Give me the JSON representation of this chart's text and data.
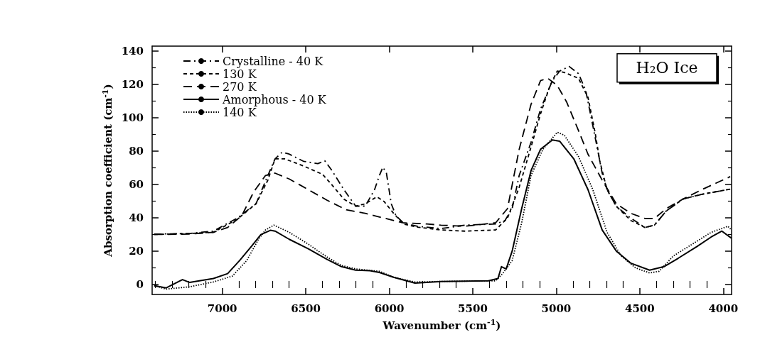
{
  "chart_data": {
    "type": "line",
    "xlabel": "Wavenumber (cm$^{-1}$)",
    "ylabel": "Absorption coefficient (cm$^{-1}$)",
    "annotations": [
      "H₂O Ice"
    ],
    "xlim": [
      7420,
      3950
    ],
    "ylim": [
      -6,
      143
    ],
    "xticks": [
      {
        "value": 7400,
        "label": null
      },
      {
        "value": 7300,
        "label": null
      },
      {
        "value": 7200,
        "label": null
      },
      {
        "value": 7100,
        "label": null
      },
      7000,
      {
        "value": 6900,
        "label": null
      },
      {
        "value": 6800,
        "label": null
      },
      {
        "value": 6700,
        "label": null
      },
      {
        "value": 6600,
        "label": null
      },
      6500,
      {
        "value": 6400,
        "label": null
      },
      {
        "value": 6300,
        "label": null
      },
      {
        "value": 6200,
        "label": null
      },
      {
        "value": 6100,
        "label": null
      },
      6000,
      {
        "value": 5900,
        "label": null
      },
      {
        "value": 5800,
        "label": null
      },
      {
        "value": 5700,
        "label": null
      },
      {
        "value": 5600,
        "label": null
      },
      5500,
      {
        "value": 5400,
        "label": null
      },
      {
        "value": 5300,
        "label": null
      },
      {
        "value": 5200,
        "label": null
      },
      {
        "value": 5100,
        "label": null
      },
      5000,
      {
        "value": 4900,
        "label": null
      },
      {
        "value": 4800,
        "label": null
      },
      {
        "value": 4700,
        "label": null
      },
      {
        "value": 4600,
        "label": null
      },
      4500,
      {
        "value": 4400,
        "label": null
      },
      {
        "value": 4300,
        "label": null
      },
      {
        "value": 4200,
        "label": null
      },
      {
        "value": 4100,
        "label": null
      },
      4000
    ],
    "yticks": [
      0,
      {
        "value": 10,
        "label": null
      },
      20,
      {
        "value": 30,
        "label": null
      },
      40,
      {
        "value": 50,
        "label": null
      },
      60,
      {
        "value": 70,
        "label": null
      },
      80,
      {
        "value": 90,
        "label": null
      },
      100,
      {
        "value": 110,
        "label": null
      },
      120,
      {
        "value": 130,
        "label": null
      },
      140
    ],
    "grid": false,
    "legend": "top left",
    "marker": "none",
    "series": [
      {
        "name": "Crystalline - 40 K",
        "color": "#000000",
        "line_style": "dashdot",
        "x": [
          7408,
          7195,
          7053,
          6911,
          6798,
          6727,
          6684,
          6641,
          6599,
          6514,
          6428,
          6386,
          6343,
          6272,
          6201,
          6144,
          6088,
          6059,
          6038,
          6017,
          5988,
          5960,
          5917,
          5832,
          5690,
          5548,
          5363,
          5307,
          5264,
          5222,
          5151,
          5094,
          5023,
          4980,
          4923,
          4867,
          4824,
          4781,
          4753,
          4725,
          4696,
          4640,
          4554,
          4469,
          4412,
          4341,
          4242,
          4128,
          3958
        ],
        "values": [
          30.2,
          30.6,
          32.0,
          39.8,
          48.4,
          65.4,
          75.4,
          79.4,
          78.2,
          73.9,
          72.5,
          74.2,
          68.3,
          56.9,
          47.0,
          47.0,
          56.9,
          65.4,
          70.4,
          66.8,
          48.4,
          41.3,
          37.0,
          34.9,
          33.5,
          35.6,
          36.3,
          38.4,
          45.5,
          65.4,
          85.3,
          105.2,
          122.3,
          128.0,
          130.8,
          126.5,
          116.6,
          95.3,
          81.1,
          66.8,
          56.9,
          46.9,
          39.8,
          34.2,
          35.6,
          44.1,
          51.2,
          54.1,
          57.2
        ]
      },
      {
        "name": "130 K",
        "color": "#000000",
        "line_style": "dashed",
        "x": [
          7408,
          7195,
          7053,
          6911,
          6798,
          6727,
          6684,
          6627,
          6514,
          6400,
          6343,
          6272,
          6201,
          6144,
          6074,
          6031,
          5974,
          5917,
          5832,
          5690,
          5548,
          5363,
          5292,
          5222,
          5151,
          5094,
          5037,
          4994,
          4952,
          4867,
          4810,
          4767,
          4739,
          4696,
          4640,
          4554,
          4469,
          4412,
          4341,
          4242,
          4128,
          3958
        ],
        "values": [
          30.0,
          30.6,
          31.3,
          39.1,
          48.4,
          62.6,
          75.4,
          75.4,
          71.1,
          66.1,
          59.7,
          51.2,
          47.0,
          48.4,
          52.6,
          49.8,
          42.7,
          36.3,
          34.4,
          32.7,
          32.0,
          32.7,
          39.8,
          58.3,
          82.5,
          102.4,
          119.4,
          128.0,
          127.2,
          123.7,
          112.3,
          91.0,
          73.9,
          56.9,
          46.9,
          38.4,
          34.2,
          35.6,
          44.1,
          51.2,
          54.1,
          57.2
        ]
      },
      {
        "name": "270 K",
        "color": "#000000",
        "line_style": "longdash",
        "x": [
          7408,
          7195,
          7053,
          6968,
          6883,
          6812,
          6741,
          6684,
          6599,
          6485,
          6372,
          6258,
          6144,
          6031,
          5917,
          5775,
          5690,
          5548,
          5363,
          5292,
          5222,
          5151,
          5094,
          5051,
          4994,
          4938,
          4867,
          4810,
          4725,
          4640,
          4554,
          4469,
          4412,
          4341,
          4242,
          4128,
          3958
        ],
        "values": [
          30.0,
          30.2,
          31.3,
          34.2,
          41.3,
          55.5,
          65.4,
          66.8,
          63.3,
          56.9,
          50.5,
          44.8,
          42.7,
          39.8,
          37.0,
          36.3,
          35.6,
          34.9,
          37.0,
          45.5,
          81.1,
          108.1,
          122.3,
          123.7,
          119.4,
          109.5,
          92.4,
          78.2,
          62.6,
          48.4,
          42.7,
          39.6,
          39.6,
          45.5,
          51.2,
          56.9,
          64.7
        ]
      },
      {
        "name": "Amorphous - 40 K",
        "color": "#000000",
        "line_style": "solid",
        "x": [
          7408,
          7337,
          7238,
          7195,
          7053,
          6968,
          6897,
          6826,
          6769,
          6712,
          6684,
          6599,
          6485,
          6372,
          6286,
          6201,
          6116,
          6059,
          5974,
          5846,
          5690,
          5406,
          5349,
          5328,
          5300,
          5264,
          5207,
          5151,
          5094,
          5023,
          4980,
          4895,
          4810,
          4725,
          4640,
          4554,
          4441,
          4355,
          4270,
          4157,
          4072,
          4008,
          3951
        ],
        "values": [
          -0.7,
          -2.1,
          2.9,
          1.2,
          3.6,
          6.5,
          14.3,
          22.8,
          29.9,
          32.5,
          32.0,
          27.1,
          21.4,
          15.0,
          10.7,
          8.6,
          8.3,
          7.2,
          4.3,
          0.8,
          1.8,
          2.2,
          3.6,
          10.7,
          9.3,
          20.0,
          45.5,
          68.3,
          81.1,
          86.7,
          86.0,
          75.4,
          56.9,
          32.7,
          20.0,
          12.8,
          8.6,
          10.7,
          15.7,
          22.8,
          28.5,
          32.0,
          27.8
        ]
      },
      {
        "name": "140 K",
        "color": "#000000",
        "line_style": "dotted",
        "x": [
          7408,
          7337,
          7195,
          7053,
          6940,
          6854,
          6783,
          6741,
          6691,
          6599,
          6485,
          6372,
          6286,
          6201,
          6059,
          5974,
          5846,
          5690,
          5363,
          5321,
          5264,
          5207,
          5151,
          5080,
          4994,
          4952,
          4867,
          4781,
          4696,
          4611,
          4526,
          4441,
          4384,
          4299,
          4185,
          4072,
          3972,
          3951
        ],
        "values": [
          -0.7,
          -2.8,
          -1.4,
          1.5,
          5.0,
          14.3,
          27.1,
          32.7,
          35.6,
          31.3,
          24.2,
          16.4,
          11.4,
          9.3,
          7.9,
          4.3,
          1.5,
          1.8,
          2.2,
          6.5,
          14.3,
          37.0,
          65.4,
          81.1,
          91.3,
          89.6,
          76.8,
          56.9,
          31.3,
          17.1,
          10.0,
          6.9,
          7.9,
          17.1,
          24.2,
          31.3,
          34.9,
          32.7
        ]
      }
    ]
  }
}
